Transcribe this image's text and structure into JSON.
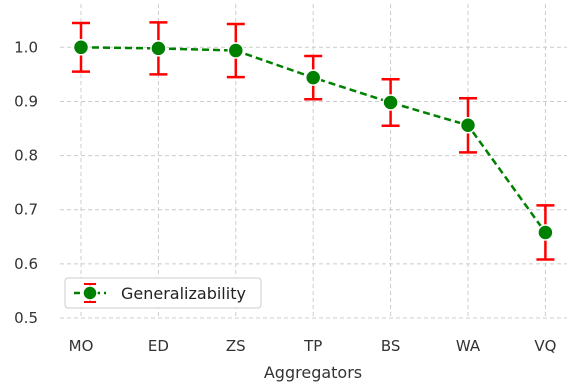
{
  "chart_data": {
    "type": "line",
    "title": "",
    "xlabel": "Aggregators",
    "ylabel": "",
    "categories": [
      "MO",
      "ED",
      "ZS",
      "TP",
      "BS",
      "WA",
      "VQ"
    ],
    "series": [
      {
        "name": "Generalizability",
        "values": [
          1.0,
          0.998,
          0.994,
          0.944,
          0.898,
          0.856,
          0.658
        ],
        "error": [
          0.045,
          0.048,
          0.049,
          0.04,
          0.043,
          0.05,
          0.05
        ],
        "color": "#008000",
        "error_color": "#ff0000",
        "line_style": "dashed",
        "marker": "circle"
      }
    ],
    "ylim": [
      0.5,
      1.08
    ],
    "yticks": [
      0.5,
      0.6,
      0.7,
      0.8,
      0.9,
      1.0
    ],
    "ytick_labels": [
      "0.5",
      "0.6",
      "0.7",
      "0.8",
      "0.9",
      "1.0"
    ],
    "grid": true,
    "legend_position": "lower-left"
  }
}
